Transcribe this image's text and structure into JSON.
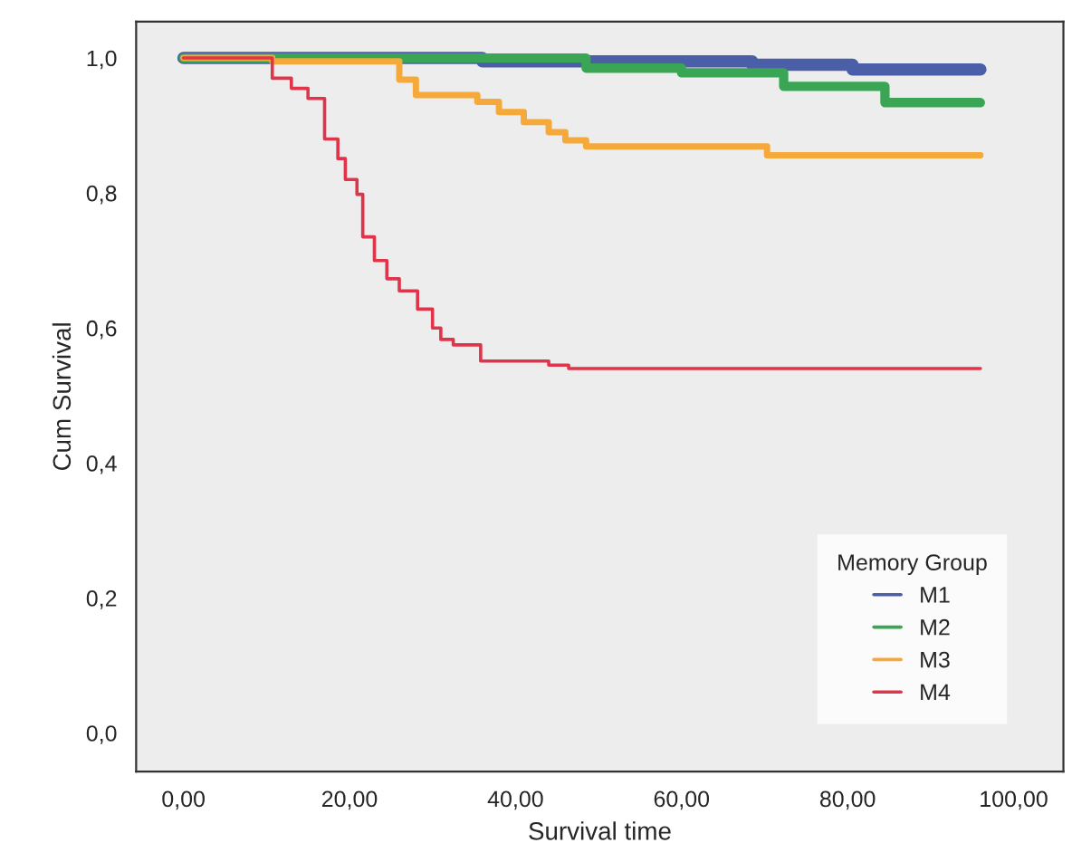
{
  "chart_data": {
    "type": "step",
    "xlabel": "Survival time",
    "ylabel": "Cum Survival",
    "legend_title": "Memory Group",
    "legend": "bottom right",
    "grid": false,
    "line_style": "solid",
    "xlim": [
      -5.7,
      106
    ],
    "ylim": [
      -0.057,
      1.054
    ],
    "xticks": [
      {
        "value": 0,
        "label": "0,00"
      },
      {
        "value": 20,
        "label": "20,00"
      },
      {
        "value": 40,
        "label": "40,00"
      },
      {
        "value": 60,
        "label": "60,00"
      },
      {
        "value": 80,
        "label": "80,00"
      },
      {
        "value": 100,
        "label": "100,00"
      }
    ],
    "yticks": [
      {
        "value": 0,
        "label": "0,0"
      },
      {
        "value": 0.2,
        "label": "0,2"
      },
      {
        "value": 0.4,
        "label": "0,4"
      },
      {
        "value": 0.6,
        "label": "0,6"
      },
      {
        "value": 0.8,
        "label": "0,8"
      },
      {
        "value": 1.0,
        "label": "1,0"
      }
    ],
    "series": [
      {
        "name": "M1",
        "color": "#4a5fa8",
        "x": [
          0,
          36,
          68.5,
          80.6,
          96
        ],
        "values": [
          1.0,
          0.995,
          0.99,
          0.983,
          0.983
        ]
      },
      {
        "name": "M2",
        "color": "#3aa655",
        "x": [
          0,
          48.5,
          60,
          72.3,
          84.5,
          96
        ],
        "values": [
          1.0,
          0.985,
          0.978,
          0.958,
          0.934,
          0.934
        ]
      },
      {
        "name": "M3",
        "color": "#f5a93a",
        "x": [
          0,
          10.7,
          26,
          28,
          35.4,
          38,
          41,
          44,
          46,
          48.5,
          70.3,
          96
        ],
        "values": [
          1.0,
          0.995,
          0.968,
          0.945,
          0.935,
          0.92,
          0.905,
          0.89,
          0.878,
          0.869,
          0.856,
          0.856
        ]
      },
      {
        "name": "M4",
        "color": "#e0344a",
        "x": [
          0,
          10.7,
          13,
          15,
          17,
          18.6,
          19.5,
          20.9,
          21.6,
          23,
          24.5,
          26,
          28.2,
          30,
          31,
          32.5,
          35.8,
          44,
          46.4,
          96
        ],
        "values": [
          1.0,
          0.97,
          0.955,
          0.94,
          0.88,
          0.851,
          0.82,
          0.798,
          0.735,
          0.7,
          0.673,
          0.655,
          0.628,
          0.6,
          0.583,
          0.575,
          0.551,
          0.545,
          0.54,
          0.54
        ]
      }
    ]
  }
}
